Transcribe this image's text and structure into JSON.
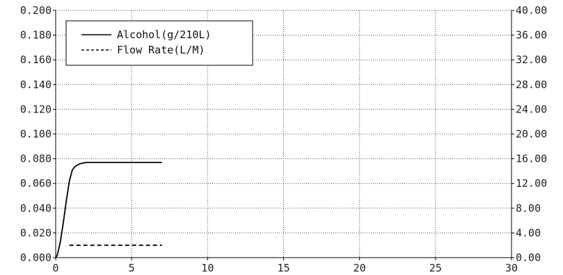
{
  "chart_data": {
    "type": "line",
    "title": "",
    "xlabel": "",
    "ylabel": "",
    "y2label": "",
    "xlim": [
      0,
      30
    ],
    "ylim": [
      0,
      0.2
    ],
    "y2lim": [
      0,
      40
    ],
    "x_ticks": [
      "0",
      "5",
      "10",
      "15",
      "20",
      "25",
      "30"
    ],
    "y_ticks": [
      "0.000",
      "0.020",
      "0.040",
      "0.060",
      "0.080",
      "0.100",
      "0.120",
      "0.140",
      "0.160",
      "0.180",
      "0.200"
    ],
    "y2_ticks": [
      "0.00",
      "4.00",
      "8.00",
      "12.00",
      "16.00",
      "20.00",
      "24.00",
      "28.00",
      "32.00",
      "36.00",
      "40.00"
    ],
    "grid": true,
    "legend_position": "top-left",
    "series": [
      {
        "name": "Alcohol(g/210L)",
        "axis": "left",
        "style": "solid",
        "color": "#000000",
        "x": [
          0,
          0.1,
          0.3,
          0.5,
          0.7,
          0.9,
          1.1,
          1.3,
          1.6,
          2.0,
          3.0,
          5.0,
          7.0
        ],
        "y": [
          0,
          0.002,
          0.012,
          0.028,
          0.046,
          0.062,
          0.071,
          0.074,
          0.076,
          0.077,
          0.077,
          0.077,
          0.077
        ]
      },
      {
        "name": "Flow Rate(L/M)",
        "axis": "right",
        "style": "dashed",
        "color": "#000000",
        "x": [
          0.9,
          7.0
        ],
        "y": [
          2.0,
          2.0
        ]
      }
    ]
  }
}
